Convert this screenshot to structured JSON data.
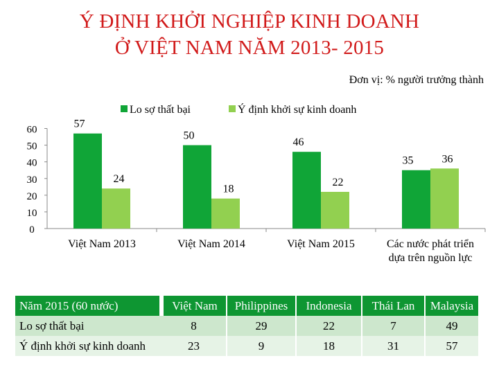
{
  "title_line1": "Ý ĐỊNH KHỞI NGHIỆP KINH DOANH",
  "title_line2": "Ở VIỆT NAM NĂM 2013- 2015",
  "unit": "Đơn vị: % người trưởng thành",
  "colors": {
    "series1": "#10a537",
    "series2": "#92d050",
    "title": "#d11a1a",
    "table_header": "#0e9632"
  },
  "chart_data": {
    "type": "bar",
    "categories": [
      "Việt Nam 2013",
      "Việt Nam 2014",
      "Việt Nam 2015",
      "Các nước phát triển\ndựa trên nguồn lực"
    ],
    "series": [
      {
        "name": "Lo sợ thất bại",
        "values": [
          57,
          50,
          46,
          35
        ]
      },
      {
        "name": "Ý định khởi sự kinh doanh",
        "values": [
          24,
          18,
          22,
          36
        ]
      }
    ],
    "yticks": [
      0,
      10,
      20,
      30,
      40,
      50,
      60
    ],
    "ylim": [
      0,
      60
    ],
    "legend": "top"
  },
  "table": {
    "corner": "Năm 2015 (60 nước)",
    "columns": [
      "Việt Nam",
      "Philippines",
      "Indonesia",
      "Thái Lan",
      "Malaysia"
    ],
    "rows": [
      {
        "label": "Lo sợ thất bại",
        "values": [
          "8",
          "29",
          "22",
          "7",
          "49"
        ]
      },
      {
        "label": "Ý định khởi sự kinh doanh",
        "values": [
          "23",
          "9",
          "18",
          "31",
          "57"
        ]
      }
    ]
  }
}
